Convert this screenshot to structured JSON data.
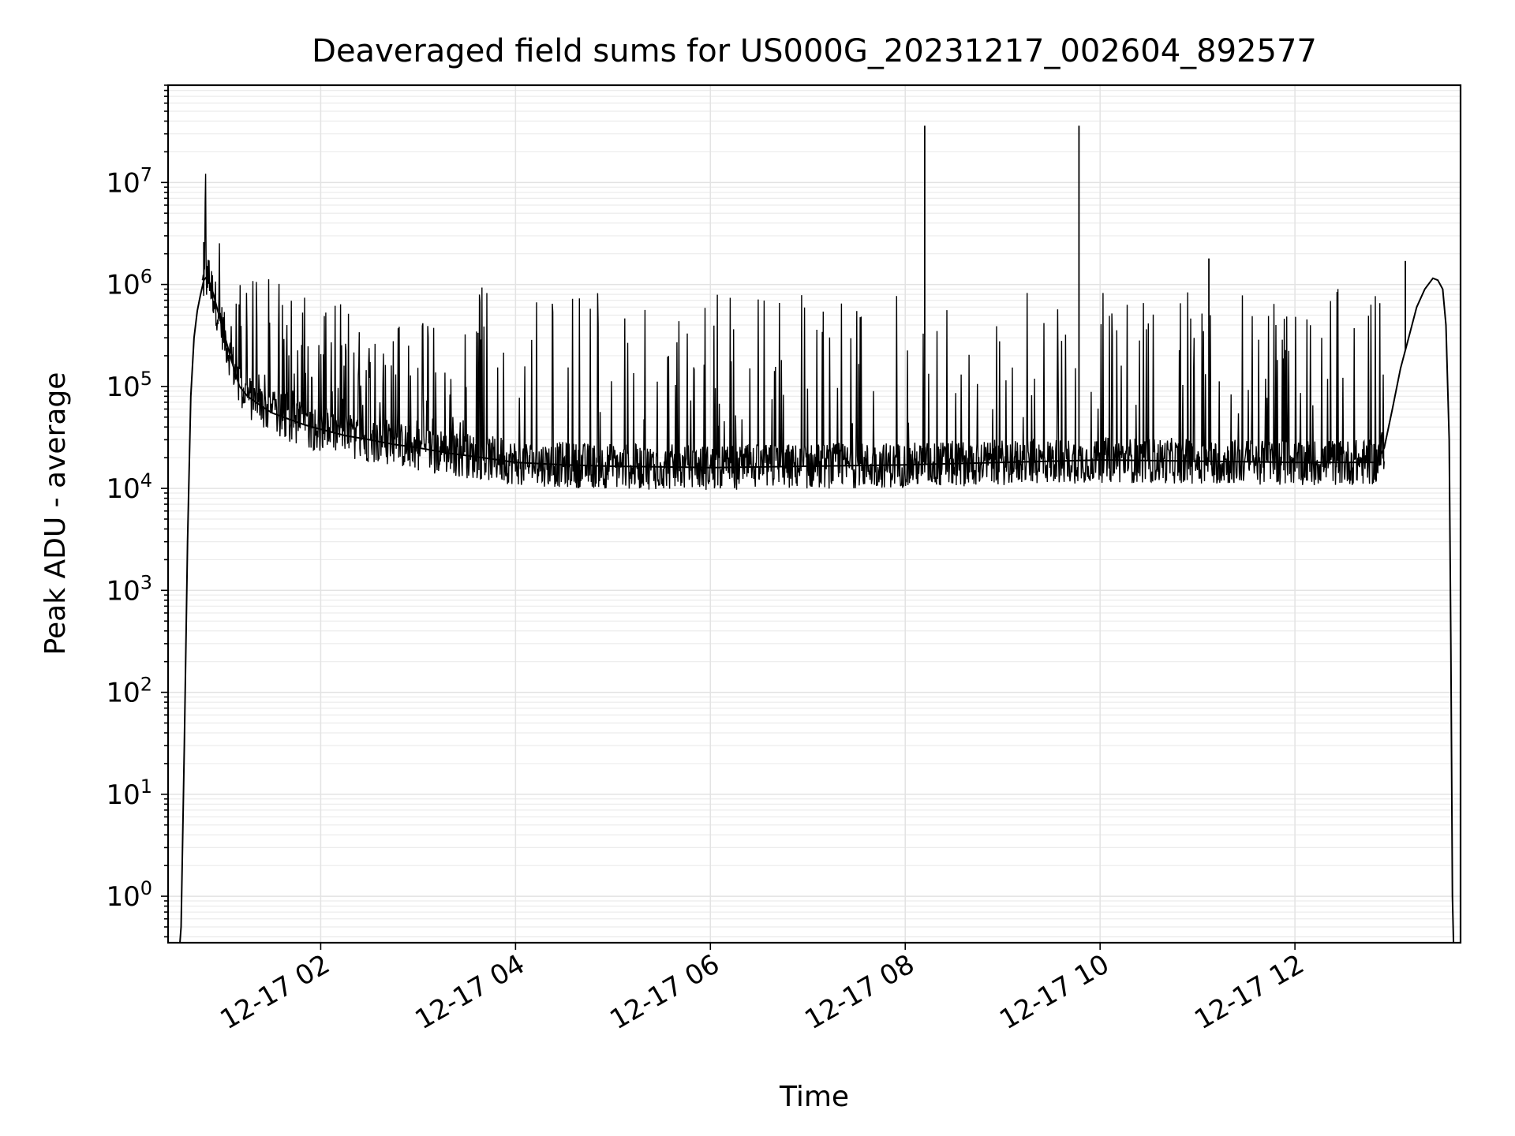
{
  "chart_data": {
    "type": "line",
    "title": "Deaveraged field sums for US000G_20231217_002604_892577",
    "xlabel": "Time",
    "ylabel": "Peak ADU - average",
    "yscale": "log",
    "ylim": [
      0.35,
      90000000
    ],
    "xlim": [
      "2023-12-17T00:26:00",
      "2023-12-17T13:42:00"
    ],
    "grid": true,
    "line_color": "#000000",
    "x_ticks": [
      {
        "value": "2023-12-17T02:00:00",
        "label": "12-17 02"
      },
      {
        "value": "2023-12-17T04:00:00",
        "label": "12-17 04"
      },
      {
        "value": "2023-12-17T06:00:00",
        "label": "12-17 06"
      },
      {
        "value": "2023-12-17T08:00:00",
        "label": "12-17 08"
      },
      {
        "value": "2023-12-17T10:00:00",
        "label": "12-17 10"
      },
      {
        "value": "2023-12-17T12:00:00",
        "label": "12-17 12"
      }
    ],
    "y_ticks": [
      {
        "value": 1,
        "base": "10",
        "exp": "0"
      },
      {
        "value": 10,
        "base": "10",
        "exp": "1"
      },
      {
        "value": 100,
        "base": "10",
        "exp": "2"
      },
      {
        "value": 1000,
        "base": "10",
        "exp": "3"
      },
      {
        "value": 10000,
        "base": "10",
        "exp": "4"
      },
      {
        "value": 100000,
        "base": "10",
        "exp": "5"
      },
      {
        "value": 1000000,
        "base": "10",
        "exp": "6"
      },
      {
        "value": 10000000,
        "base": "10",
        "exp": "7"
      }
    ],
    "series": [
      {
        "x": [
          "2023-12-17T00:33:00",
          "2023-12-17T00:34:00",
          "2023-12-17T00:36:00",
          "2023-12-17T00:38:00",
          "2023-12-17T00:40:00",
          "2023-12-17T00:42:00",
          "2023-12-17T00:44:00",
          "2023-12-17T00:46:00",
          "2023-12-17T00:48:00",
          "2023-12-17T00:50:00",
          "2023-12-17T00:52:00",
          "2023-12-17T00:54:00",
          "2023-12-17T00:56:00",
          "2023-12-17T01:00:00",
          "2023-12-17T01:05:00",
          "2023-12-17T01:10:00",
          "2023-12-17T01:15:00",
          "2023-12-17T01:20:00",
          "2023-12-17T01:30:00",
          "2023-12-17T01:40:00",
          "2023-12-17T01:50:00",
          "2023-12-17T02:00:00",
          "2023-12-17T02:15:00",
          "2023-12-17T02:30:00",
          "2023-12-17T02:45:00",
          "2023-12-17T03:00:00",
          "2023-12-17T03:20:00",
          "2023-12-17T03:40:00",
          "2023-12-17T04:00:00",
          "2023-12-17T04:30:00",
          "2023-12-17T05:00:00",
          "2023-12-17T06:00:00",
          "2023-12-17T07:00:00",
          "2023-12-17T08:00:00",
          "2023-12-17T09:00:00",
          "2023-12-17T10:00:00",
          "2023-12-17T11:00:00",
          "2023-12-17T12:00:00",
          "2023-12-17T12:50:00",
          "2023-12-17T12:55:00",
          "2023-12-17T13:00:00",
          "2023-12-17T13:05:00",
          "2023-12-17T13:10:00",
          "2023-12-17T13:15:00",
          "2023-12-17T13:20:00",
          "2023-12-17T13:25:00",
          "2023-12-17T13:28:00",
          "2023-12-17T13:31:00",
          "2023-12-17T13:33:00",
          "2023-12-17T13:35:00",
          "2023-12-17T13:36:00",
          "2023-12-17T13:37:00",
          "2023-12-17T13:38:00"
        ],
        "y": [
          0.3,
          0.5,
          30,
          3000,
          80000,
          300000,
          550000,
          800000,
          1100000,
          1200000,
          1000000,
          800000,
          600000,
          350000,
          180000,
          100000,
          80000,
          70000,
          55000,
          48000,
          42000,
          38000,
          33000,
          30000,
          27000,
          25000,
          22000,
          20000,
          18000,
          17000,
          16500,
          16000,
          16500,
          17000,
          18000,
          19000,
          18500,
          18000,
          18000,
          25000,
          60000,
          150000,
          300000,
          600000,
          900000,
          1150000,
          1100000,
          900000,
          400000,
          30000,
          300,
          1,
          0.2
        ],
        "spikes": [
          {
            "x": "2023-12-17T00:48:00",
            "y": 2600000
          },
          {
            "x": "2023-12-17T08:12:00",
            "y": 36000000
          },
          {
            "x": "2023-12-17T09:47:00",
            "y": 36000000
          },
          {
            "x": "2023-12-17T11:07:00",
            "y": 1800000
          },
          {
            "x": "2023-12-17T13:08:00",
            "y": 1700000
          }
        ]
      }
    ]
  }
}
